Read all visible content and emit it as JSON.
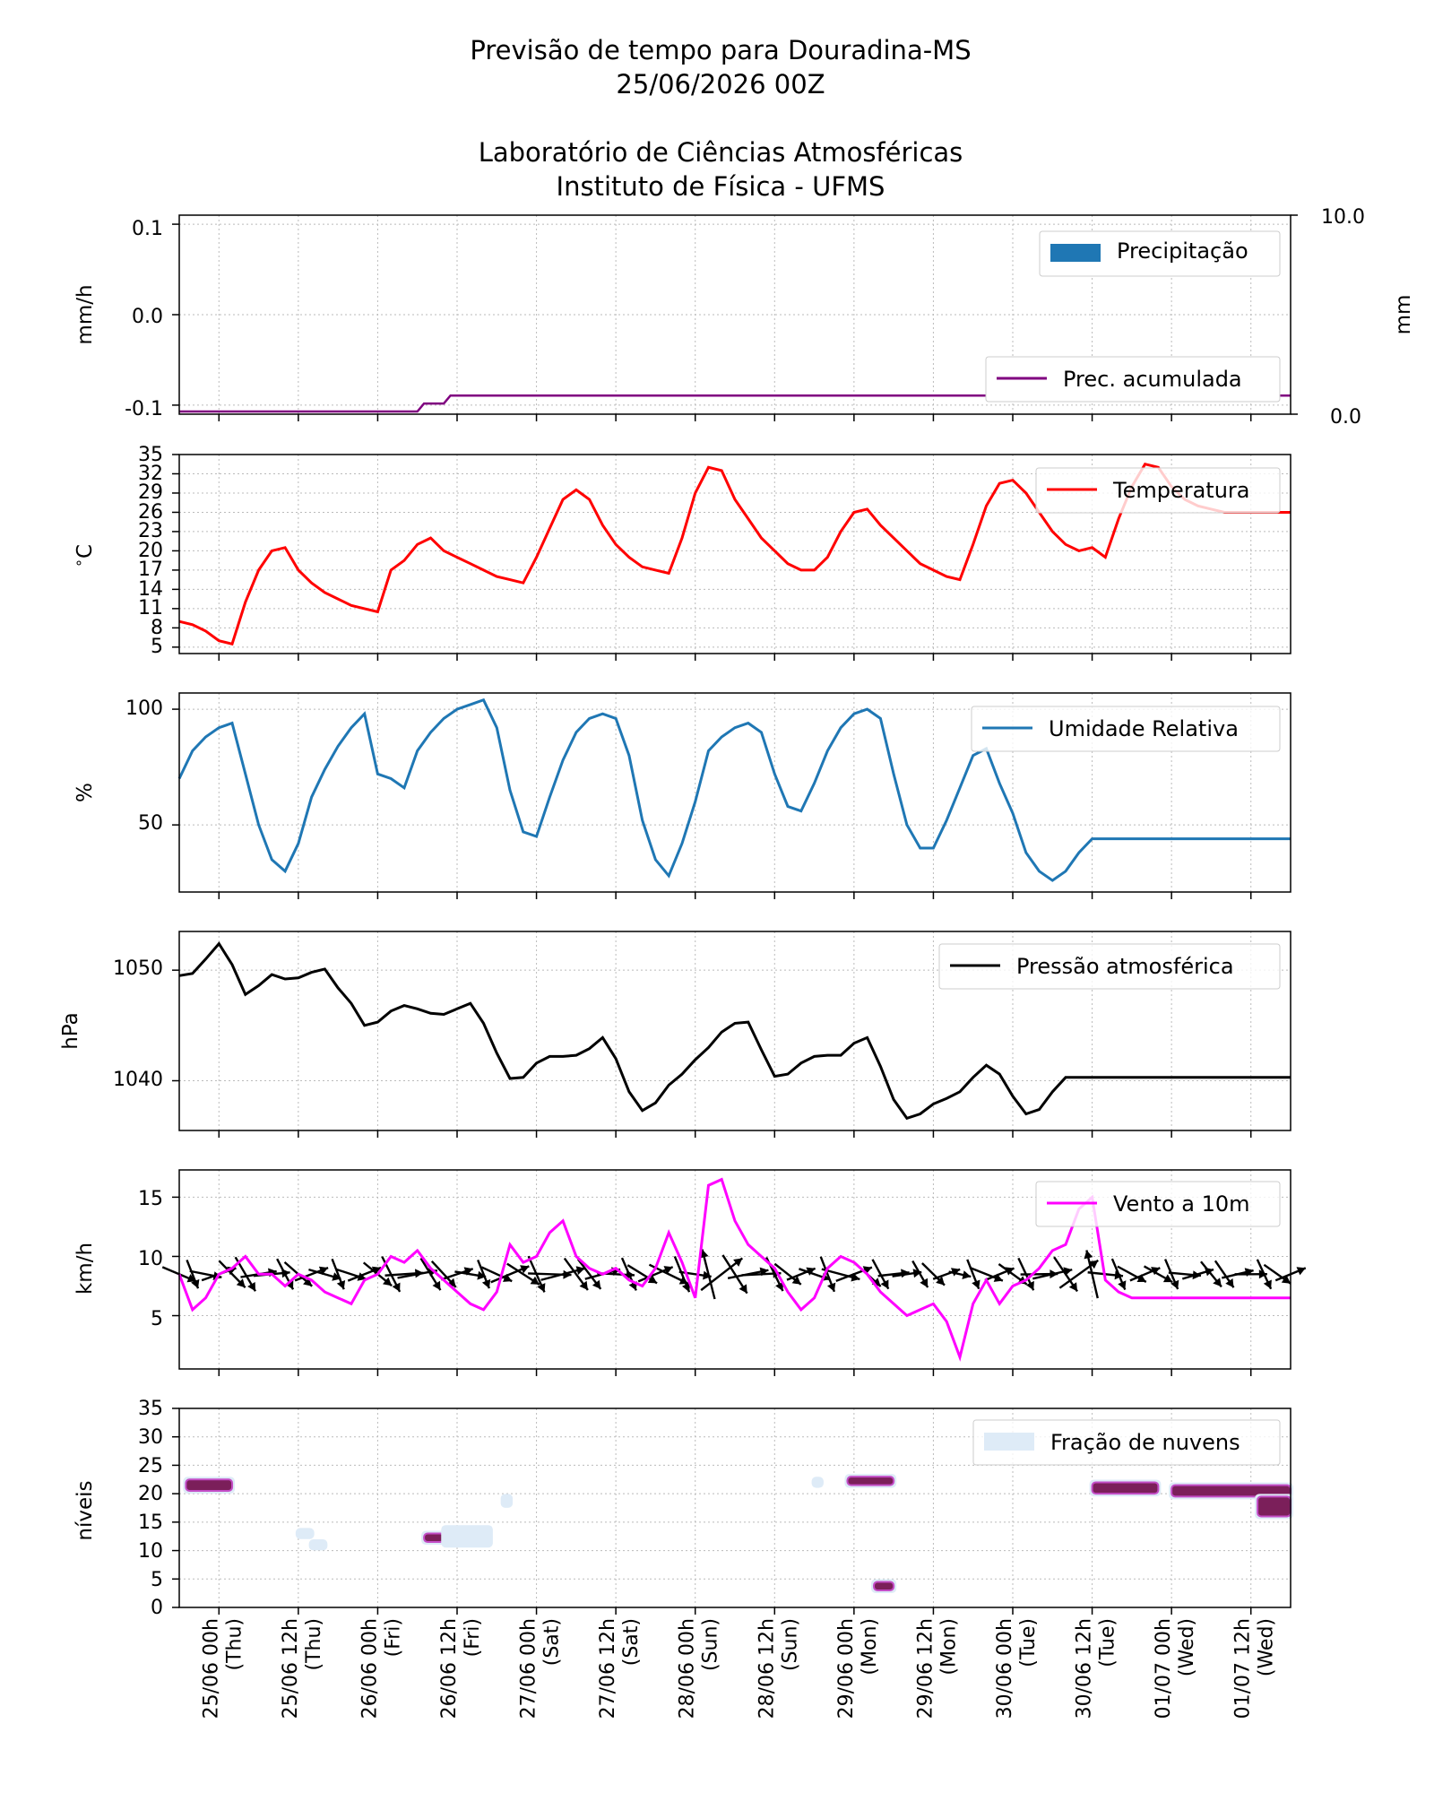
{
  "title": {
    "line1": "Previsão de tempo para Douradina-MS",
    "line2": "25/06/2026 00Z",
    "line3": "Laboratório de Ciências Atmosféricas",
    "line4": "Instituto de Física - UFMS"
  },
  "x_ticks": [
    {
      "date": "25/06 00h",
      "day": "(Thu)"
    },
    {
      "date": "25/06 12h",
      "day": "(Thu)"
    },
    {
      "date": "26/06 00h",
      "day": "(Fri)"
    },
    {
      "date": "26/06 12h",
      "day": "(Fri)"
    },
    {
      "date": "27/06 00h",
      "day": "(Sat)"
    },
    {
      "date": "27/06 12h",
      "day": "(Sat)"
    },
    {
      "date": "28/06 00h",
      "day": "(Sun)"
    },
    {
      "date": "28/06 12h",
      "day": "(Sun)"
    },
    {
      "date": "29/06 00h",
      "day": "(Mon)"
    },
    {
      "date": "29/06 12h",
      "day": "(Mon)"
    },
    {
      "date": "30/06 00h",
      "day": "(Tue)"
    },
    {
      "date": "30/06 12h",
      "day": "(Tue)"
    },
    {
      "date": "01/07 00h",
      "day": "(Wed)"
    },
    {
      "date": "01/07 12h",
      "day": "(Wed)"
    }
  ],
  "colors": {
    "precip": "#1f77b4",
    "accum": "#800080",
    "temp": "#ff0000",
    "rh": "#1f77b4",
    "pressure": "#000000",
    "wind": "#ff00ff",
    "arrows": "#000000",
    "cloud_light": "#deebf7",
    "cloud_dark": "#7b1f5a"
  },
  "chart_data": [
    {
      "type": "bar",
      "ylabel": "mm/h",
      "ylabel_right": "mm",
      "y_ticks": [
        "0.1",
        "0.0",
        "-0.1"
      ],
      "y_ticks_right": [
        "10.0",
        "0.0"
      ],
      "ylim": [
        -0.11,
        0.11
      ],
      "ylim_right": [
        0,
        10
      ],
      "legend_upper": "Precipitação",
      "legend_lower": "Prec. acumulada",
      "accumulated_x_hours": [
        0,
        36,
        37,
        38,
        40,
        41,
        42,
        168
      ],
      "accumulated_values": [
        0.0,
        0.0,
        0.1,
        0.1,
        0.1,
        0.2,
        0.2,
        0.2
      ]
    },
    {
      "type": "line",
      "ylabel": "$^\\circ$C",
      "y_ticks": [
        "35",
        "32",
        "29",
        "26",
        "23",
        "20",
        "17",
        "14",
        "11",
        "8",
        "5"
      ],
      "ylim": [
        4,
        35
      ],
      "legend": "Temperatura",
      "x_hours": [
        0,
        2,
        4,
        6,
        8,
        10,
        12,
        14,
        16,
        18,
        20,
        22,
        24,
        26,
        28,
        30,
        32,
        34,
        36,
        38,
        40,
        42,
        44,
        46,
        48,
        50,
        52,
        54,
        56,
        58,
        60,
        62,
        64,
        66,
        68,
        70,
        72,
        74,
        76,
        78,
        80,
        82,
        84,
        86,
        88,
        90,
        92,
        94,
        96,
        98,
        100,
        102,
        104,
        106,
        108,
        110,
        112,
        114,
        116,
        118,
        120,
        122,
        124,
        126,
        128,
        130,
        132,
        134,
        136,
        138,
        140,
        142,
        144,
        146,
        148,
        150,
        152,
        154,
        156,
        158,
        160,
        162,
        164,
        166,
        168
      ],
      "values": [
        9,
        8.5,
        7.5,
        6,
        5.5,
        12,
        17,
        20,
        20.5,
        17,
        15,
        13.5,
        12.5,
        11.5,
        11,
        10.5,
        17,
        18.5,
        21,
        22,
        20,
        19,
        18,
        17,
        16,
        15.5,
        15,
        19,
        23.5,
        28,
        29.5,
        28,
        24,
        21,
        19,
        17.5,
        17,
        16.5,
        22,
        29,
        33,
        32.5,
        28,
        25,
        22,
        20,
        18,
        17,
        17,
        19,
        23,
        26,
        26.5,
        24,
        22,
        20,
        18,
        17,
        16,
        15.5,
        21,
        27,
        30.5,
        31,
        29,
        26,
        23,
        21,
        20,
        20.5,
        19,
        25,
        30,
        33.5,
        33,
        30,
        28,
        27,
        26.5,
        26,
        26,
        26,
        26,
        26,
        26
      ]
    },
    {
      "type": "line",
      "ylabel": "%",
      "y_ticks": [
        "100",
        "50"
      ],
      "ylim": [
        21,
        107
      ],
      "legend": "Umidade Relativa",
      "x_hours": [
        0,
        2,
        4,
        6,
        8,
        10,
        12,
        14,
        16,
        18,
        20,
        22,
        24,
        26,
        28,
        30,
        32,
        34,
        36,
        38,
        40,
        42,
        44,
        46,
        48,
        50,
        52,
        54,
        56,
        58,
        60,
        62,
        64,
        66,
        68,
        70,
        72,
        74,
        76,
        78,
        80,
        82,
        84,
        86,
        88,
        90,
        92,
        94,
        96,
        98,
        100,
        102,
        104,
        106,
        108,
        110,
        112,
        114,
        116,
        118,
        120,
        122,
        124,
        126,
        128,
        130,
        132,
        134,
        136,
        138,
        140,
        142,
        144,
        146,
        148,
        150,
        152,
        154,
        156,
        158,
        160,
        162,
        164,
        166,
        168
      ],
      "values": [
        70,
        82,
        88,
        92,
        94,
        72,
        50,
        35,
        30,
        42,
        62,
        74,
        84,
        92,
        98,
        72,
        70,
        66,
        82,
        90,
        96,
        100,
        102,
        104,
        92,
        65,
        47,
        45,
        62,
        78,
        90,
        96,
        98,
        96,
        80,
        52,
        35,
        28,
        42,
        60,
        82,
        88,
        92,
        94,
        90,
        72,
        58,
        56,
        68,
        82,
        92,
        98,
        100,
        96,
        72,
        50,
        40,
        40,
        52,
        66,
        80,
        83,
        68,
        55,
        38,
        30,
        26,
        30,
        38,
        44,
        44,
        44,
        44,
        44,
        44,
        44,
        44,
        44,
        44,
        44,
        44,
        44,
        44,
        44,
        44
      ]
    },
    {
      "type": "line",
      "ylabel": "hPa",
      "y_ticks": [
        "1050",
        "1040"
      ],
      "ylim": [
        1035.5,
        1053.5
      ],
      "legend": "Pressão atmosférica",
      "x_hours": [
        0,
        2,
        4,
        6,
        8,
        10,
        12,
        14,
        16,
        18,
        20,
        22,
        24,
        26,
        28,
        30,
        32,
        34,
        36,
        38,
        40,
        42,
        44,
        46,
        48,
        50,
        52,
        54,
        56,
        58,
        60,
        62,
        64,
        66,
        68,
        70,
        72,
        74,
        76,
        78,
        80,
        82,
        84,
        86,
        88,
        90,
        92,
        94,
        96,
        98,
        100,
        102,
        104,
        106,
        108,
        110,
        112,
        114,
        116,
        118,
        120,
        122,
        124,
        126,
        128,
        130,
        132,
        134,
        136,
        138,
        140,
        142,
        144,
        146,
        148,
        150,
        152,
        154,
        156,
        158,
        160,
        162,
        164,
        166,
        168
      ],
      "values": [
        1049.5,
        1049.7,
        1051,
        1052.4,
        1050.5,
        1047.8,
        1048.6,
        1049.6,
        1049.2,
        1049.3,
        1049.8,
        1050.1,
        1048.4,
        1047,
        1045,
        1045.3,
        1046.3,
        1046.8,
        1046.5,
        1046.1,
        1046,
        1046.5,
        1047,
        1045.2,
        1042.5,
        1040.2,
        1040.3,
        1041.6,
        1042.2,
        1042.2,
        1042.3,
        1042.9,
        1043.9,
        1042,
        1039,
        1037.3,
        1038,
        1039.6,
        1040.6,
        1041.9,
        1043,
        1044.4,
        1045.2,
        1045.3,
        1042.8,
        1040.4,
        1040.6,
        1041.6,
        1042.2,
        1042.3,
        1042.3,
        1043.4,
        1043.9,
        1041.3,
        1038.3,
        1036.6,
        1037,
        1037.9,
        1038.4,
        1039,
        1040.3,
        1041.4,
        1040.6,
        1038.6,
        1037,
        1037.4,
        1039,
        1040.3,
        1040.3,
        1040.3,
        1040.3,
        1040.3,
        1040.3,
        1040.3,
        1040.3,
        1040.3,
        1040.3,
        1040.3,
        1040.3,
        1040.3,
        1040.3,
        1040.3,
        1040.3,
        1040.3,
        1040.3
      ]
    },
    {
      "type": "line",
      "ylabel": "km/h",
      "y_ticks": [
        "15",
        "10",
        "5"
      ],
      "ylim": [
        0.5,
        17.3
      ],
      "legend": "Vento a 10m",
      "x_hours": [
        0,
        2,
        4,
        6,
        8,
        10,
        12,
        14,
        16,
        18,
        20,
        22,
        24,
        26,
        28,
        30,
        32,
        34,
        36,
        38,
        40,
        42,
        44,
        46,
        48,
        50,
        52,
        54,
        56,
        58,
        60,
        62,
        64,
        66,
        68,
        70,
        72,
        74,
        76,
        78,
        80,
        82,
        84,
        86,
        88,
        90,
        92,
        94,
        96,
        98,
        100,
        102,
        104,
        106,
        108,
        110,
        112,
        114,
        116,
        118,
        120,
        122,
        124,
        126,
        128,
        130,
        132,
        134,
        136,
        138,
        140,
        142,
        144,
        146,
        148,
        150,
        152,
        154,
        156,
        158,
        160,
        162,
        164,
        166,
        168
      ],
      "values": [
        8.5,
        5.5,
        6.5,
        8.5,
        9,
        10,
        8.5,
        8.5,
        7.5,
        8.5,
        8,
        7,
        6.5,
        6,
        8,
        8.5,
        10,
        9.5,
        10.5,
        9,
        8,
        7,
        6,
        5.5,
        7,
        11,
        9.5,
        10,
        12,
        13,
        10,
        9,
        8.5,
        9,
        8,
        7.5,
        9,
        12,
        9.5,
        6.5,
        16,
        16.5,
        13,
        11,
        10,
        9,
        7,
        5.5,
        6.5,
        9,
        10,
        9.5,
        8.5,
        7,
        6,
        5,
        5.5,
        6,
        4.5,
        1.5,
        6,
        8,
        6,
        7.5,
        8,
        9,
        10.5,
        11,
        14,
        15,
        8,
        7,
        6.5,
        6.5,
        6.5,
        6.5,
        6.5,
        6.5,
        6.5,
        6.5,
        6.5,
        6.5,
        6.5,
        6.5,
        6.5
      ],
      "wind_direction_arrows": true
    },
    {
      "type": "heatmap",
      "ylabel": "níveis",
      "y_ticks": [
        "35",
        "30",
        "25",
        "20",
        "15",
        "10",
        "5",
        "0"
      ],
      "ylim": [
        0,
        35
      ],
      "legend": "Fração de nuvens",
      "cloud_patches": [
        {
          "x_start": 1,
          "x_end": 8,
          "level_low": 20.5,
          "level_high": 22.5,
          "dense": true
        },
        {
          "x_start": 18,
          "x_end": 20,
          "level_low": 12.5,
          "level_high": 13.5,
          "dense": false
        },
        {
          "x_start": 20,
          "x_end": 22,
          "level_low": 10.5,
          "level_high": 11.5,
          "dense": false
        },
        {
          "x_start": 37,
          "x_end": 40,
          "level_low": 11.5,
          "level_high": 13,
          "dense": true
        },
        {
          "x_start": 40,
          "x_end": 47,
          "level_low": 11,
          "level_high": 14,
          "dense": false
        },
        {
          "x_start": 49,
          "x_end": 50,
          "level_low": 18,
          "level_high": 19.5,
          "dense": false
        },
        {
          "x_start": 96,
          "x_end": 97,
          "level_low": 21.5,
          "level_high": 22.5,
          "dense": false
        },
        {
          "x_start": 101,
          "x_end": 108,
          "level_low": 21.5,
          "level_high": 23,
          "dense": true
        },
        {
          "x_start": 105,
          "x_end": 108,
          "level_low": 3,
          "level_high": 4.5,
          "dense": true
        },
        {
          "x_start": 138,
          "x_end": 148,
          "level_low": 20,
          "level_high": 22,
          "dense": true
        },
        {
          "x_start": 150,
          "x_end": 168,
          "level_low": 19.5,
          "level_high": 21.5,
          "dense": true
        },
        {
          "x_start": 163,
          "x_end": 168,
          "level_low": 16,
          "level_high": 19.5,
          "dense": true
        }
      ]
    }
  ]
}
